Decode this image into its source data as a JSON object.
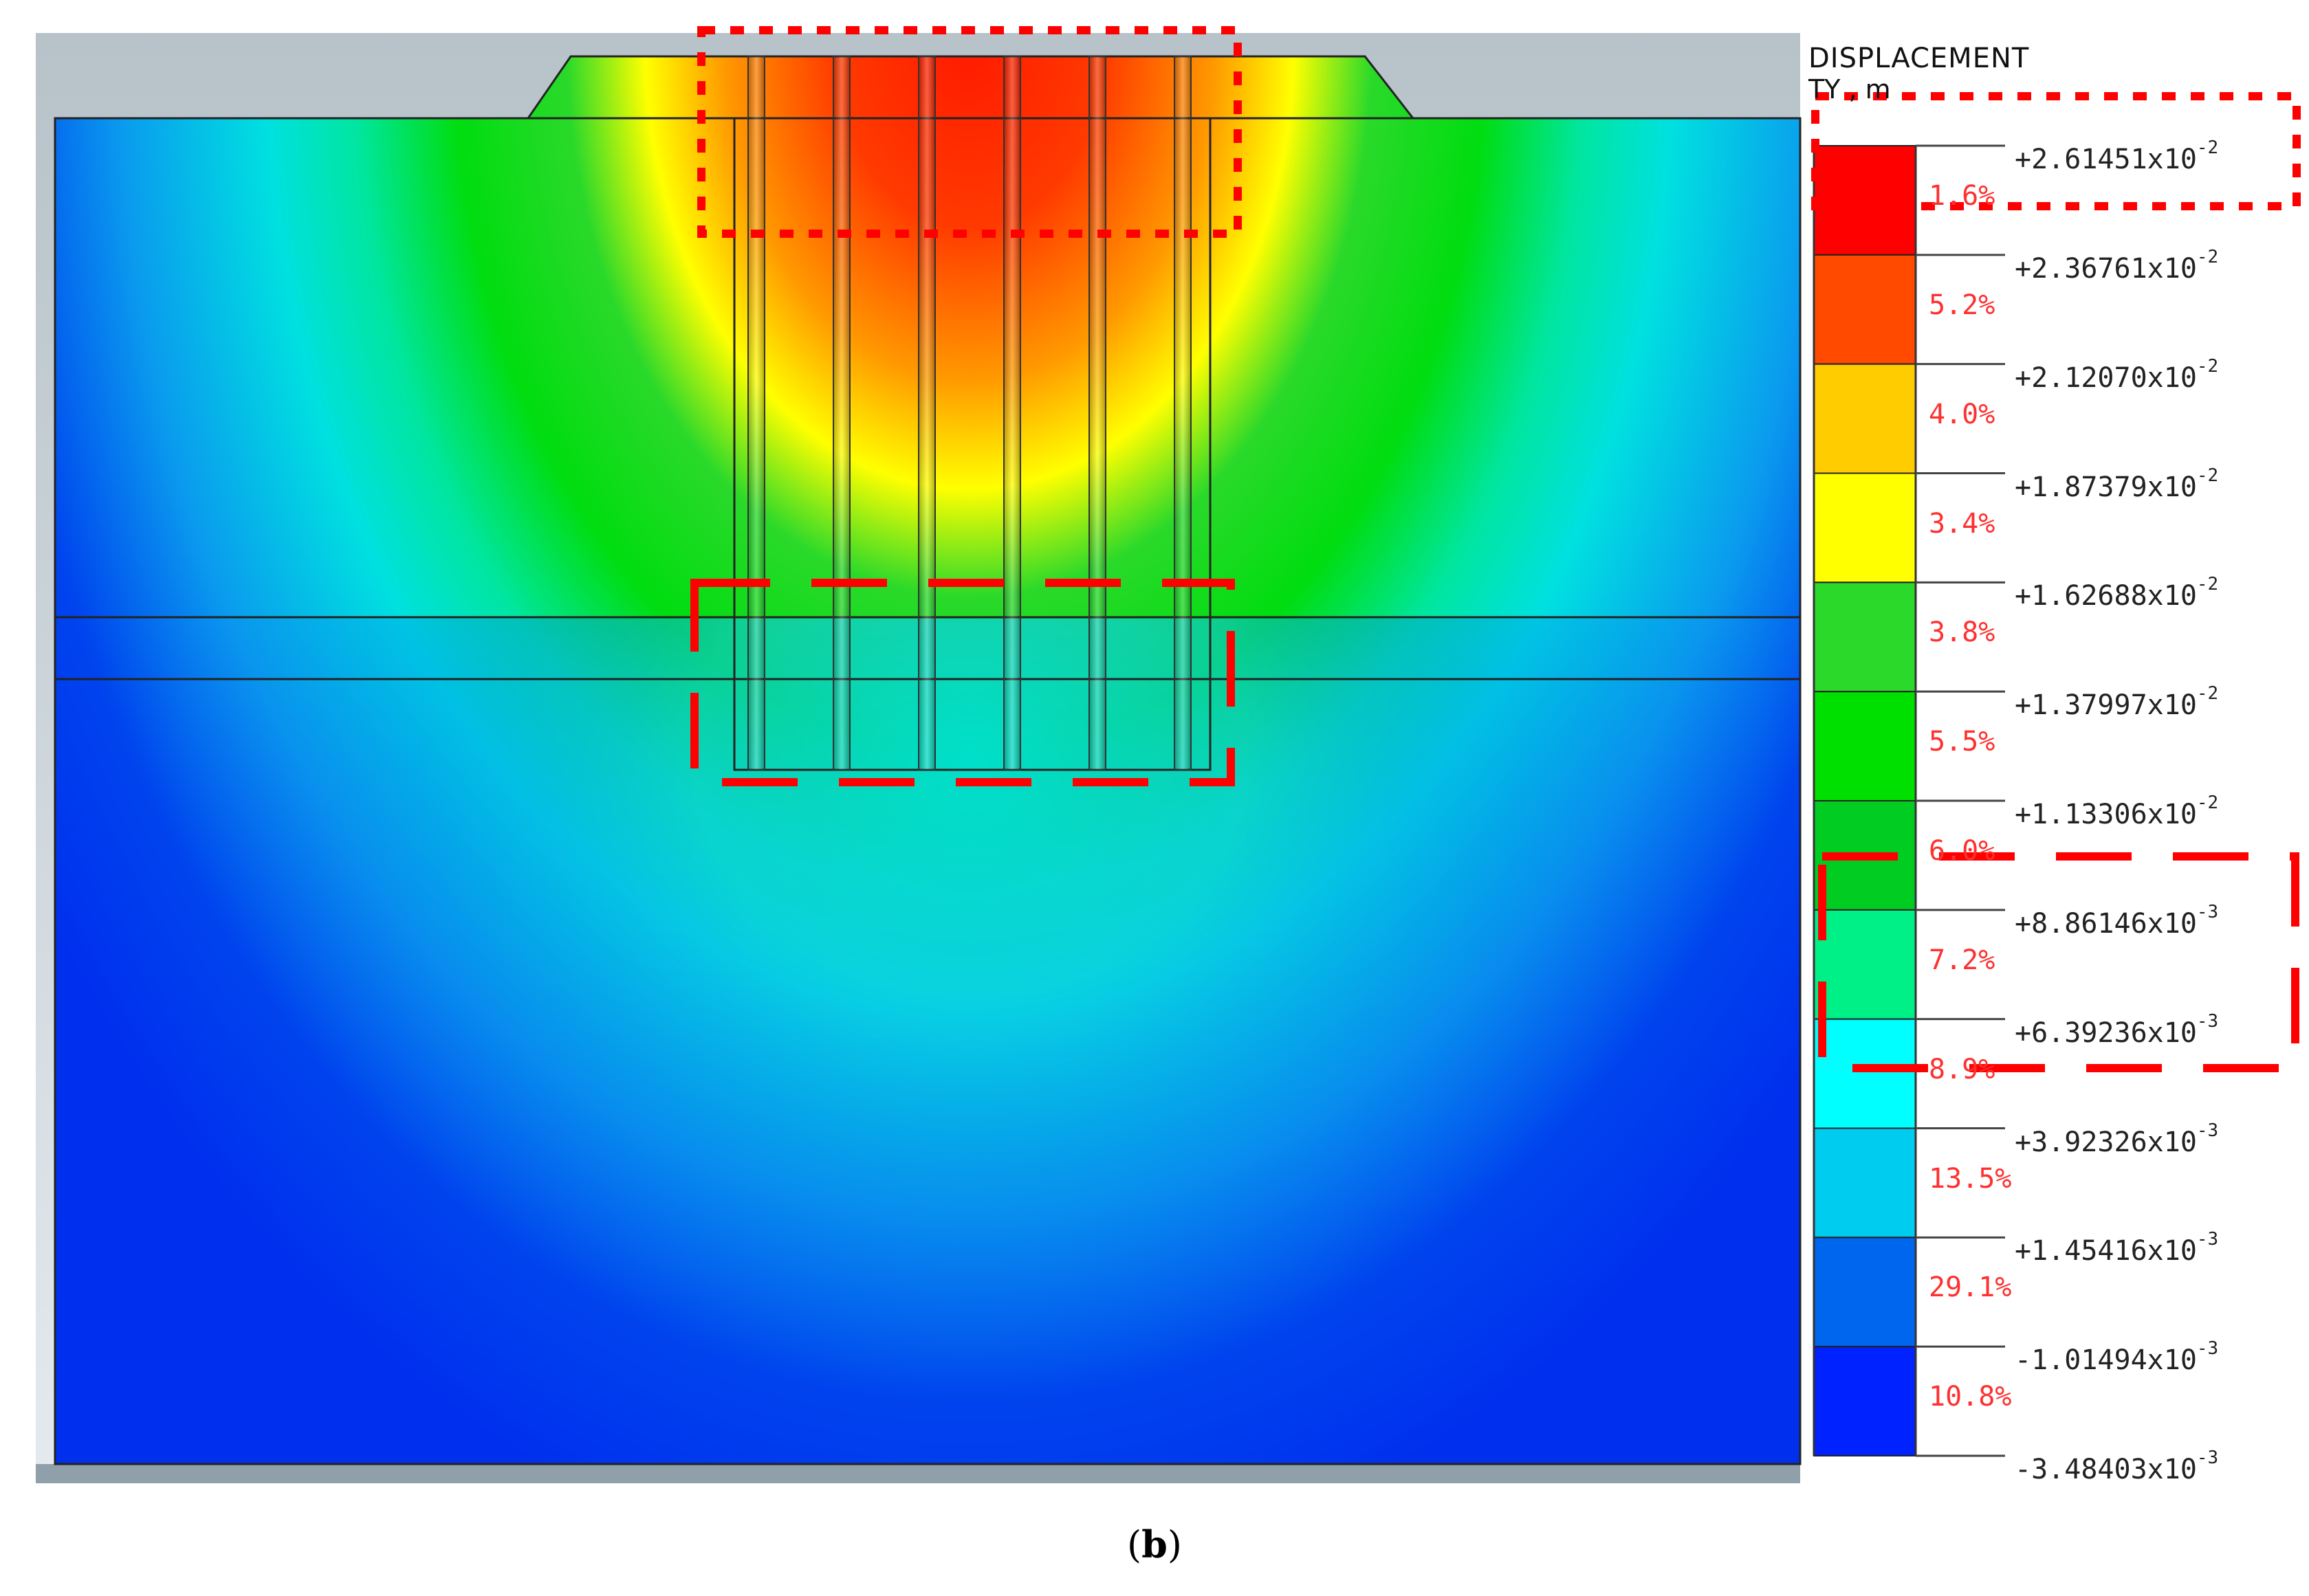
{
  "legend": {
    "title": "DISPLACEMENT",
    "unit": "TY , m",
    "colors": [
      "#ff0000",
      "#ff4a00",
      "#ffcc00",
      "#ffff00",
      "#2ad92a",
      "#00e000",
      "#00cc22",
      "#00f088",
      "#00ffff",
      "#00ccf0",
      "#0066ee",
      "#0022ff"
    ],
    "ticks": [
      {
        "mantissa": "+2.61451",
        "exp": "-2"
      },
      {
        "mantissa": "+2.36761",
        "exp": "-2"
      },
      {
        "mantissa": "+2.12070",
        "exp": "-2"
      },
      {
        "mantissa": "+1.87379",
        "exp": "-2"
      },
      {
        "mantissa": "+1.62688",
        "exp": "-2"
      },
      {
        "mantissa": "+1.37997",
        "exp": "-2"
      },
      {
        "mantissa": "+1.13306",
        "exp": "-2"
      },
      {
        "mantissa": "+8.86146",
        "exp": "-3"
      },
      {
        "mantissa": "+6.39236",
        "exp": "-3"
      },
      {
        "mantissa": "+3.92326",
        "exp": "-3"
      },
      {
        "mantissa": "+1.45416",
        "exp": "-3"
      },
      {
        "mantissa": "-1.01494",
        "exp": "-3"
      },
      {
        "mantissa": "-3.48403",
        "exp": "-3"
      }
    ],
    "percents": [
      "1.6%",
      "5.2%",
      "4.0%",
      "3.4%",
      "3.8%",
      "5.5%",
      "6.0%",
      "7.2%",
      "8.9%",
      "13.5%",
      "29.1%",
      "10.8%"
    ]
  },
  "caption": {
    "open": "(",
    "letter": "b",
    "close": ")"
  }
}
